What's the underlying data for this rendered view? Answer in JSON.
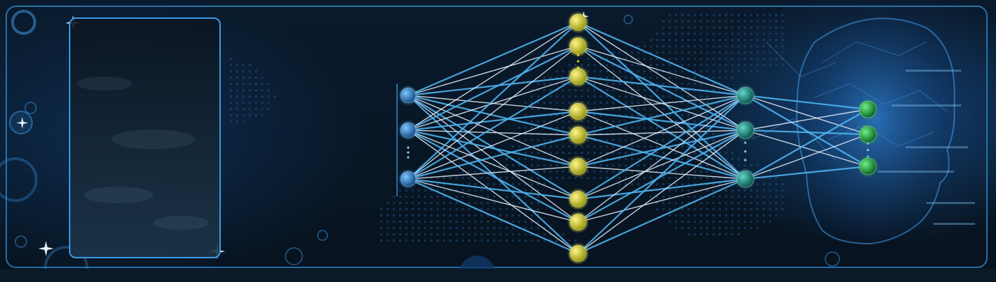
{
  "colors": {
    "background": "#081624",
    "frame": "#2f86c8",
    "link_white": "#e8f2ff",
    "link_blue": "#4fb3f0",
    "node_input": "#2f7fc4",
    "node_hidden": "#d8d62a",
    "node_hidden2": "#1f8c84",
    "node_output": "#1fa03a",
    "ellipsis": "#e6d020"
  },
  "network": {
    "layers": [
      {
        "name": "input",
        "nodes": 3,
        "color_key": "node_input",
        "has_ellipsis": true
      },
      {
        "name": "hidden-1",
        "nodes": 9,
        "color_key": "node_hidden",
        "has_ellipsis": true
      },
      {
        "name": "hidden-2",
        "nodes": 3,
        "color_key": "node_hidden2",
        "has_ellipsis": true
      },
      {
        "name": "output",
        "nodes": 3,
        "color_key": "node_output",
        "has_ellipsis": true
      }
    ]
  },
  "icons": {
    "panel": "empty-frame-panel",
    "head": "digital-head-silhouette"
  }
}
